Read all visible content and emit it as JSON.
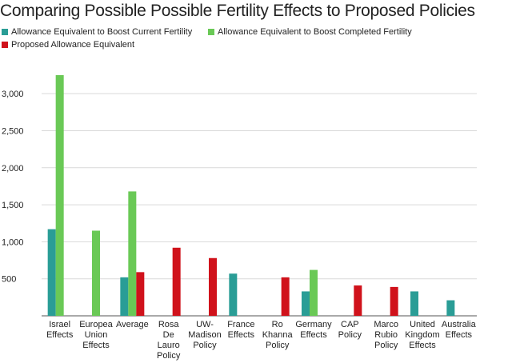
{
  "chart_data": {
    "type": "bar",
    "title": "Comparing Possible Possible Fertility Effects to Proposed Policies",
    "xlabel": "",
    "ylabel": "",
    "ylim": [
      0,
      3250
    ],
    "yticks": [
      500,
      1000,
      1500,
      2000,
      2500,
      3000
    ],
    "ytick_labels": [
      "500",
      "1,000",
      "1,500",
      "2,000",
      "2,500",
      "3,000"
    ],
    "grid": true,
    "legend_position": "top-left",
    "categories": [
      [
        "Israel",
        "Effects"
      ],
      [
        "Europea",
        "Union",
        "Effects"
      ],
      [
        "Average"
      ],
      [
        "Rosa",
        "De",
        "Lauro",
        "Policy"
      ],
      [
        "UW-",
        "Madison",
        "Policy"
      ],
      [
        "France",
        "Effects"
      ],
      [
        "Ro",
        "Khanna",
        "Policy"
      ],
      [
        "Germany",
        "Effects"
      ],
      [
        "CAP",
        "Policy"
      ],
      [
        "Marco",
        "Rubio",
        "Policy"
      ],
      [
        "United",
        "Kingdom",
        "Effects"
      ],
      [
        "Australia",
        "Effects"
      ]
    ],
    "series": [
      {
        "name": "Allowance Equivalent to Boost Current Fertility",
        "color": "#2a9d96",
        "values": [
          1170,
          null,
          520,
          null,
          null,
          570,
          null,
          330,
          null,
          null,
          330,
          210
        ]
      },
      {
        "name": "Allowance Equivalent to Boost Completed Fertility",
        "color": "#6ac956",
        "values": [
          3250,
          1150,
          1680,
          null,
          null,
          null,
          null,
          620,
          null,
          null,
          null,
          null
        ]
      },
      {
        "name": "Proposed Allowance Equivalent",
        "color": "#d0121b",
        "values": [
          null,
          null,
          590,
          920,
          780,
          null,
          520,
          null,
          410,
          390,
          null,
          null
        ]
      }
    ]
  }
}
